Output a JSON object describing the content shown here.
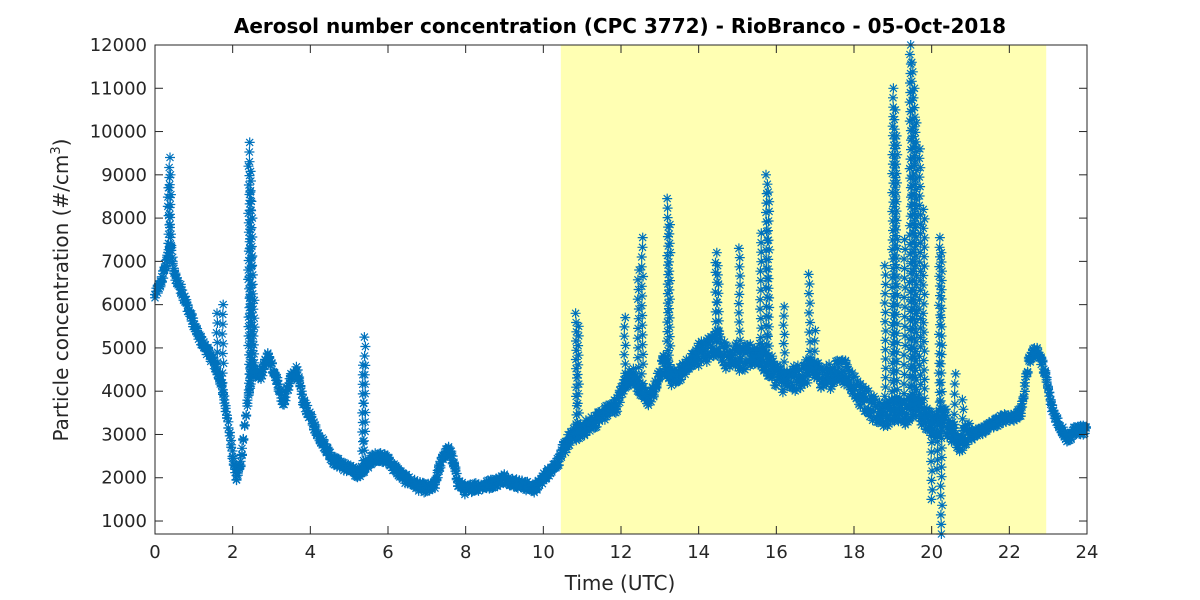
{
  "chart_data": {
    "type": "scatter",
    "title": "Aerosol number concentration (CPC 3772) - RioBranco - 05-Oct-2018",
    "xlabel": "Time (UTC)",
    "ylabel_main": "Particle concentration (#/cm",
    "ylabel_sup": "3",
    "ylabel_close": ")",
    "xlim": [
      0,
      24
    ],
    "ylim": [
      700,
      12000
    ],
    "xticks": [
      0,
      2,
      4,
      6,
      8,
      10,
      12,
      14,
      16,
      18,
      20,
      22,
      24
    ],
    "yticks": [
      1000,
      2000,
      3000,
      4000,
      5000,
      6000,
      7000,
      8000,
      9000,
      10000,
      11000,
      12000
    ],
    "grid": false,
    "marker": "asterisk",
    "colors": {
      "series": "#0072bd",
      "highlight": "#ffffb3",
      "axis": "#262626"
    },
    "highlight_band": {
      "x_start": 10.45,
      "x_end": 22.95
    },
    "series": [
      {
        "baseline": [
          [
            0.0,
            6200
          ],
          [
            0.15,
            6500
          ],
          [
            0.3,
            7000
          ],
          [
            0.4,
            7400
          ],
          [
            0.5,
            6700
          ],
          [
            0.7,
            6300
          ],
          [
            0.9,
            5800
          ],
          [
            1.1,
            5300
          ],
          [
            1.3,
            5000
          ],
          [
            1.5,
            4700
          ],
          [
            1.7,
            4200
          ],
          [
            1.85,
            3500
          ],
          [
            2.0,
            2500
          ],
          [
            2.1,
            2000
          ],
          [
            2.2,
            2300
          ],
          [
            2.35,
            3500
          ],
          [
            2.5,
            4500
          ],
          [
            2.7,
            4300
          ],
          [
            2.9,
            4800
          ],
          [
            3.1,
            4400
          ],
          [
            3.3,
            3700
          ],
          [
            3.5,
            4300
          ],
          [
            3.65,
            4500
          ],
          [
            3.8,
            3800
          ],
          [
            4.0,
            3400
          ],
          [
            4.2,
            3000
          ],
          [
            4.4,
            2700
          ],
          [
            4.6,
            2400
          ],
          [
            4.8,
            2300
          ],
          [
            5.0,
            2200
          ],
          [
            5.2,
            2100
          ],
          [
            5.4,
            2200
          ],
          [
            5.6,
            2450
          ],
          [
            5.8,
            2500
          ],
          [
            6.0,
            2400
          ],
          [
            6.2,
            2200
          ],
          [
            6.4,
            2000
          ],
          [
            6.6,
            1900
          ],
          [
            6.8,
            1800
          ],
          [
            7.0,
            1750
          ],
          [
            7.2,
            1800
          ],
          [
            7.4,
            2500
          ],
          [
            7.6,
            2650
          ],
          [
            7.8,
            1900
          ],
          [
            8.0,
            1700
          ],
          [
            8.2,
            1800
          ],
          [
            8.4,
            1800
          ],
          [
            8.6,
            1850
          ],
          [
            8.8,
            1900
          ],
          [
            9.0,
            2000
          ],
          [
            9.2,
            1900
          ],
          [
            9.4,
            1850
          ],
          [
            9.6,
            1800
          ],
          [
            9.8,
            1750
          ],
          [
            10.0,
            2000
          ],
          [
            10.2,
            2200
          ],
          [
            10.4,
            2400
          ],
          [
            10.6,
            2800
          ],
          [
            10.8,
            3000
          ],
          [
            11.0,
            3100
          ],
          [
            11.3,
            3300
          ],
          [
            11.6,
            3500
          ],
          [
            11.9,
            3700
          ],
          [
            12.1,
            4200
          ],
          [
            12.3,
            4400
          ],
          [
            12.5,
            4000
          ],
          [
            12.7,
            3800
          ],
          [
            12.9,
            4100
          ],
          [
            13.1,
            4700
          ],
          [
            13.3,
            4300
          ],
          [
            13.5,
            4400
          ],
          [
            13.7,
            4600
          ],
          [
            13.9,
            4800
          ],
          [
            14.1,
            4900
          ],
          [
            14.3,
            5000
          ],
          [
            14.5,
            5200
          ],
          [
            14.7,
            4800
          ],
          [
            14.9,
            4900
          ],
          [
            15.1,
            4700
          ],
          [
            15.3,
            4800
          ],
          [
            15.5,
            4900
          ],
          [
            15.7,
            4700
          ],
          [
            15.9,
            4500
          ],
          [
            16.1,
            4300
          ],
          [
            16.3,
            4200
          ],
          [
            16.5,
            4300
          ],
          [
            16.7,
            4400
          ],
          [
            16.9,
            4500
          ],
          [
            17.1,
            4400
          ],
          [
            17.3,
            4300
          ],
          [
            17.5,
            4400
          ],
          [
            17.7,
            4500
          ],
          [
            17.9,
            4300
          ],
          [
            18.1,
            4000
          ],
          [
            18.3,
            3800
          ],
          [
            18.5,
            3600
          ],
          [
            18.7,
            3400
          ],
          [
            18.9,
            3500
          ],
          [
            19.1,
            3600
          ],
          [
            19.3,
            3500
          ],
          [
            19.5,
            3700
          ],
          [
            19.7,
            3500
          ],
          [
            19.9,
            3300
          ],
          [
            20.1,
            3200
          ],
          [
            20.3,
            3400
          ],
          [
            20.5,
            3100
          ],
          [
            20.7,
            2900
          ],
          [
            20.9,
            2950
          ],
          [
            21.1,
            3000
          ],
          [
            21.3,
            3100
          ],
          [
            21.5,
            3200
          ],
          [
            21.7,
            3300
          ],
          [
            21.9,
            3400
          ],
          [
            22.1,
            3400
          ],
          [
            22.3,
            3500
          ],
          [
            22.5,
            4700
          ],
          [
            22.7,
            5000
          ],
          [
            22.9,
            4500
          ],
          [
            23.1,
            3600
          ],
          [
            23.3,
            3200
          ],
          [
            23.5,
            2900
          ],
          [
            23.7,
            3100
          ],
          [
            23.9,
            3100
          ],
          [
            24.0,
            3100
          ]
        ],
        "peaks": [
          [
            0.38,
            9400
          ],
          [
            0.4,
            9000
          ],
          [
            0.35,
            8700
          ],
          [
            1.75,
            6000
          ],
          [
            1.6,
            5800
          ],
          [
            2.45,
            9750
          ],
          [
            2.42,
            9200
          ],
          [
            2.47,
            8600
          ],
          [
            2.5,
            8000
          ],
          [
            2.55,
            6100
          ],
          [
            5.4,
            5250
          ],
          [
            5.35,
            4600
          ],
          [
            10.85,
            5800
          ],
          [
            10.9,
            5500
          ],
          [
            12.1,
            5700
          ],
          [
            12.45,
            6800
          ],
          [
            12.55,
            7550
          ],
          [
            13.2,
            8450
          ],
          [
            13.25,
            7850
          ],
          [
            14.45,
            7200
          ],
          [
            14.5,
            6900
          ],
          [
            15.05,
            7300
          ],
          [
            15.6,
            7650
          ],
          [
            15.75,
            9000
          ],
          [
            15.8,
            8600
          ],
          [
            16.2,
            5950
          ],
          [
            16.85,
            6700
          ],
          [
            17.0,
            5400
          ],
          [
            18.8,
            6900
          ],
          [
            19.0,
            11000
          ],
          [
            19.05,
            10500
          ],
          [
            19.1,
            9900
          ],
          [
            19.45,
            12000
          ],
          [
            19.5,
            11600
          ],
          [
            19.55,
            11000
          ],
          [
            19.6,
            10200
          ],
          [
            19.7,
            9600
          ],
          [
            19.8,
            8200
          ],
          [
            19.3,
            7500
          ],
          [
            20.2,
            7550
          ],
          [
            20.25,
            7200
          ],
          [
            20.0,
            1500
          ],
          [
            20.15,
            2200
          ],
          [
            20.25,
            700
          ],
          [
            20.6,
            4400
          ],
          [
            20.8,
            3800
          ]
        ]
      }
    ]
  }
}
